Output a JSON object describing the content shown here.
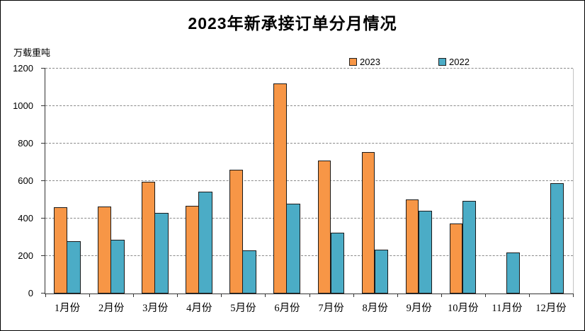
{
  "chart_data": {
    "type": "bar",
    "title": "2023年新承接订单分月情况",
    "unit_label": "万载重吨",
    "categories": [
      "1月份",
      "2月份",
      "3月份",
      "4月份",
      "5月份",
      "6月份",
      "7月份",
      "8月份",
      "9月份",
      "10月份",
      "11月份",
      "12月份"
    ],
    "series": [
      {
        "name": "2023",
        "color": "#F79646",
        "values": [
          459,
          464,
          595,
          467,
          660,
          1122,
          709,
          755,
          502,
          373,
          null,
          null
        ]
      },
      {
        "name": "2022",
        "color": "#4BACC6",
        "values": [
          281,
          285,
          430,
          545,
          230,
          478,
          324,
          233,
          440,
          495,
          219,
          590
        ]
      }
    ],
    "ylim": [
      0,
      1200
    ],
    "yticks": [
      0,
      200,
      400,
      600,
      800,
      1000,
      1200
    ],
    "grid": true,
    "legend_position": "top"
  },
  "colors": {
    "bar_2023": "#F79646",
    "bar_2022": "#4BACC6",
    "bar_border": "#1A1A1A",
    "gridline": "#8A8A8A",
    "axis": "#333333",
    "frame_border": "#000000",
    "background": "#FFFFFF",
    "text": "#000000"
  }
}
